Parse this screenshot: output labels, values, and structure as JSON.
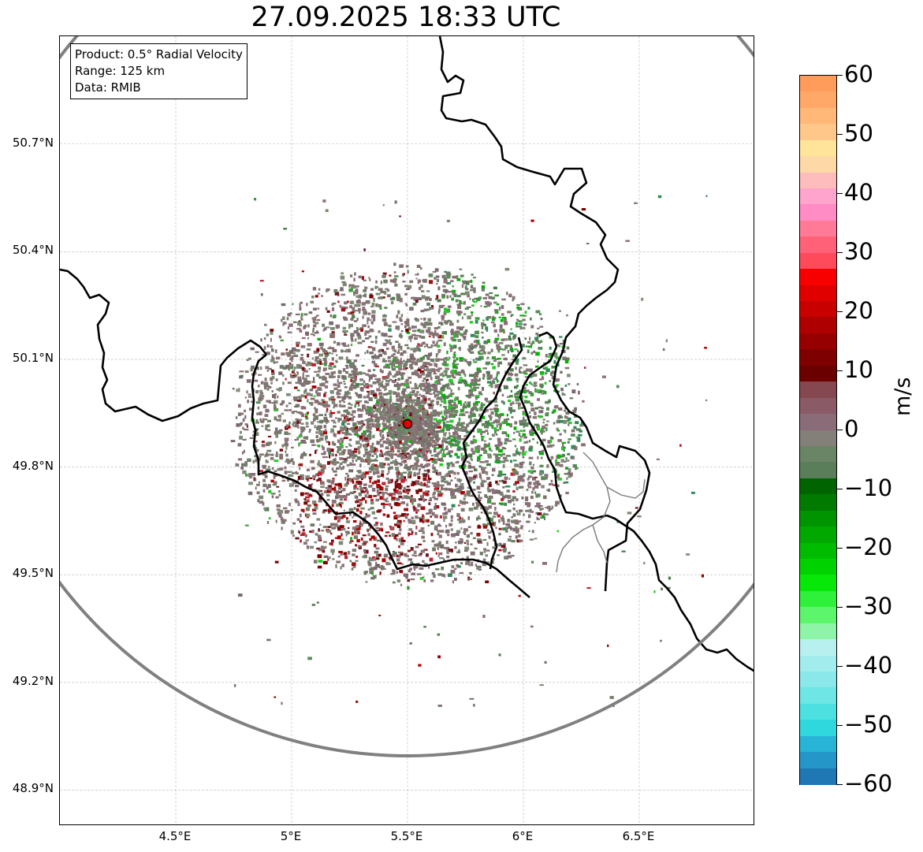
{
  "title": "27.09.2025 18:33 UTC",
  "info": {
    "product": "Product: 0.5° Radial Velocity",
    "range": "Range: 125 km",
    "data": "Data: RMIB"
  },
  "map": {
    "lon_range": [
      4.0,
      7.0
    ],
    "lat_range": [
      48.8,
      51.0
    ],
    "radar_site": {
      "lon": 5.5,
      "lat": 49.92
    },
    "range_ring_km": 125,
    "lat_ticks": [
      {
        "value": 50.7,
        "label": "50.7°N"
      },
      {
        "value": 50.4,
        "label": "50.4°N"
      },
      {
        "value": 50.1,
        "label": "50.1°N"
      },
      {
        "value": 49.8,
        "label": "49.8°N"
      },
      {
        "value": 49.5,
        "label": "49.5°N"
      },
      {
        "value": 49.2,
        "label": "49.2°N"
      },
      {
        "value": 48.9,
        "label": "48.9°N"
      }
    ],
    "lon_ticks": [
      {
        "value": 4.5,
        "label": "4.5°E"
      },
      {
        "value": 5.0,
        "label": "5°E"
      },
      {
        "value": 5.5,
        "label": "5.5°E"
      },
      {
        "value": 6.0,
        "label": "6°E"
      },
      {
        "value": 6.5,
        "label": "6.5°E"
      }
    ]
  },
  "colorbar": {
    "unit": "m/s",
    "min": -60,
    "max": 60,
    "ticks": [
      {
        "value": 60,
        "label": "60"
      },
      {
        "value": 50,
        "label": "50"
      },
      {
        "value": 40,
        "label": "40"
      },
      {
        "value": 30,
        "label": "30"
      },
      {
        "value": 20,
        "label": "20"
      },
      {
        "value": 10,
        "label": "10"
      },
      {
        "value": 0,
        "label": "0"
      },
      {
        "value": -10,
        "label": "−10"
      },
      {
        "value": -20,
        "label": "−20"
      },
      {
        "value": -30,
        "label": "−30"
      },
      {
        "value": -40,
        "label": "−40"
      },
      {
        "value": -50,
        "label": "−50"
      },
      {
        "value": -60,
        "label": "−60"
      }
    ],
    "colors": [
      "#1f77b4",
      "#2596c8",
      "#28b4d6",
      "#2ed8dc",
      "#4de0e0",
      "#6ee6e6",
      "#8ae8ea",
      "#a3ecee",
      "#b8f0f0",
      "#8ef5a8",
      "#5cf56c",
      "#2ff03a",
      "#08e808",
      "#00d200",
      "#00bc00",
      "#00a800",
      "#009400",
      "#007a00",
      "#006400",
      "#5a7e5a",
      "#6a8466",
      "#828078",
      "#8a6c78",
      "#8a5a66",
      "#864850",
      "#6a0000",
      "#7e0000",
      "#960000",
      "#ae0000",
      "#c80000",
      "#e00000",
      "#f80000",
      "#ff4a5c",
      "#ff6278",
      "#ff7a96",
      "#ff8cc4",
      "#ffa4cc",
      "#ffbcbc",
      "#ffd8a8",
      "#ffe49a",
      "#ffc88a",
      "#ffb878",
      "#ffa868",
      "#ff9c5c"
    ]
  }
}
